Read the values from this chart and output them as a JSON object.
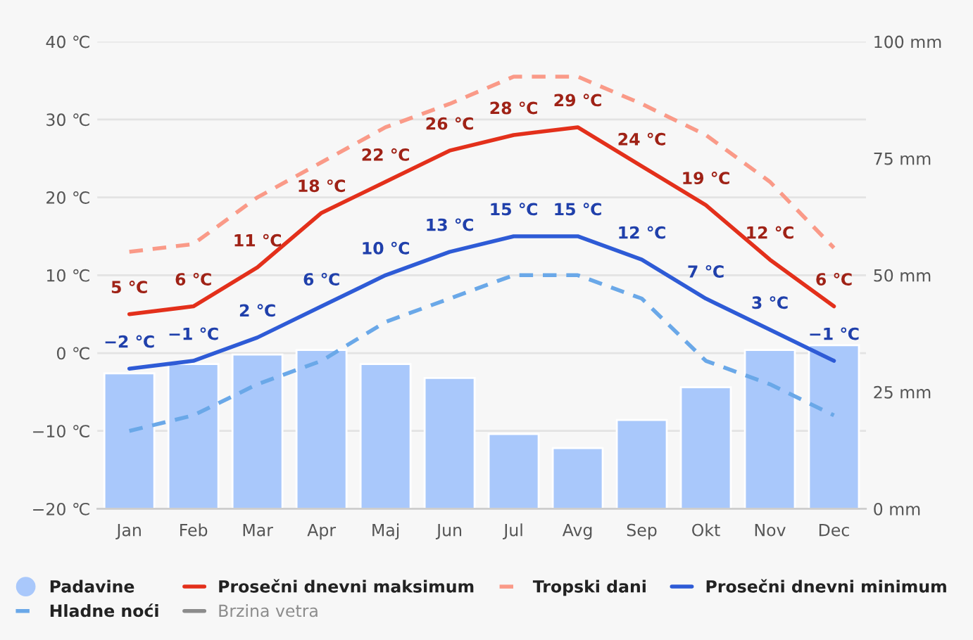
{
  "chart_data": {
    "type": "line",
    "categories": [
      "Jan",
      "Feb",
      "Mar",
      "Apr",
      "Maj",
      "Jun",
      "Jul",
      "Avg",
      "Sep",
      "Okt",
      "Nov",
      "Dec"
    ],
    "series": [
      {
        "name": "Padavine",
        "type": "bar",
        "axis": "y2",
        "color": "#a9c8fb",
        "values": [
          29,
          31,
          33,
          34,
          31,
          28,
          16,
          13,
          19,
          26,
          34,
          35
        ]
      },
      {
        "name": "Prosečni dnevni maksimum",
        "color": "#e3301b",
        "line_style": "solid",
        "values": [
          5,
          6,
          11,
          18,
          22,
          26,
          28,
          29,
          24,
          19,
          12,
          6
        ],
        "value_labels": [
          "5 ℃",
          "6 ℃",
          "11 ℃",
          "18 ℃",
          "22 ℃",
          "26 ℃",
          "28 ℃",
          "29 ℃",
          "24 ℃",
          "19 ℃",
          "12 ℃",
          "6 ℃"
        ]
      },
      {
        "name": "Tropski dani",
        "color": "#fa9a88",
        "line_style": "dashed",
        "values": [
          13,
          14,
          20,
          24.5,
          29,
          32,
          35.5,
          35.5,
          32,
          28,
          22,
          13.5
        ]
      },
      {
        "name": "Prosečni dnevni minimum",
        "color": "#2e5bd6",
        "line_style": "solid",
        "values": [
          -2,
          -1,
          2,
          6,
          10,
          13,
          15,
          15,
          12,
          7,
          3,
          -1
        ],
        "value_labels": [
          "−2 ℃",
          "−1 ℃",
          "2 ℃",
          "6 ℃",
          "10 ℃",
          "13 ℃",
          "15 ℃",
          "15 ℃",
          "12 ℃",
          "7 ℃",
          "3 ℃",
          "−1 ℃"
        ]
      },
      {
        "name": "Hladne noći",
        "color": "#6aa8e8",
        "line_style": "dashed",
        "values": [
          -10,
          -8,
          -4,
          -1,
          4,
          7,
          10,
          10,
          7,
          -1,
          -4,
          -8
        ]
      },
      {
        "name": "Brzina vetra",
        "color": "#8c8c8c",
        "line_style": "solid",
        "values": [
          null,
          null,
          null,
          null,
          null,
          null,
          null,
          null,
          null,
          null,
          null,
          null
        ]
      }
    ],
    "ylim": [
      -20,
      40
    ],
    "yticks": [
      {
        "value": -20,
        "label": "−20 ℃"
      },
      {
        "value": -10,
        "label": "−10 ℃"
      },
      {
        "value": 0,
        "label": "0 ℃"
      },
      {
        "value": 10,
        "label": "10 ℃"
      },
      {
        "value": 20,
        "label": "20 ℃"
      },
      {
        "value": 30,
        "label": "30 ℃"
      },
      {
        "value": 40,
        "label": "40 ℃"
      }
    ],
    "y2lim": [
      0,
      100
    ],
    "y2ticks": [
      {
        "value": 0,
        "label": "0 mm"
      },
      {
        "value": 25,
        "label": "25 mm"
      },
      {
        "value": 50,
        "label": "50 mm"
      },
      {
        "value": 75,
        "label": "75 mm"
      },
      {
        "value": 100,
        "label": "100 mm"
      }
    ],
    "grid": "y",
    "legend": "bottom",
    "marker": "none"
  }
}
